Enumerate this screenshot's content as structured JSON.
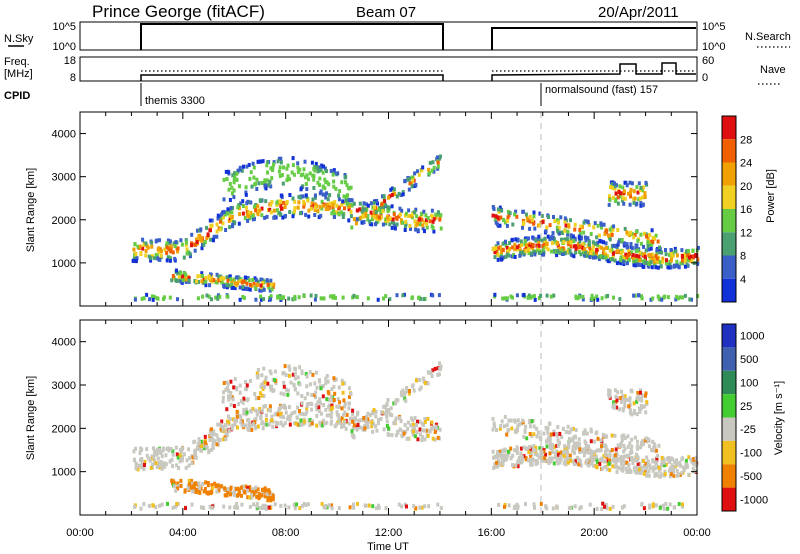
{
  "header": {
    "title": "Prince George (fitACF)",
    "beam": "Beam 07",
    "date": "20/Apr/2011"
  },
  "top_panels": {
    "nsky_label": "N.Sky",
    "nsky_ticks": [
      "10^5",
      "10^0"
    ],
    "nsearch_label": "N.Search",
    "nsearch_ticks": [
      "10^5",
      "10^0"
    ],
    "freq_label_1": "Freq.",
    "freq_label_2": "[MHz]",
    "freq_ticks": [
      "18",
      "8"
    ],
    "nave_label": "Nave",
    "nave_ticks": [
      "60",
      "0"
    ],
    "cpid_label": "CPID",
    "cpid_modes": [
      "themis 3300",
      "normalsound (fast) 157"
    ]
  },
  "chart_data": [
    {
      "type": "heatmap",
      "name": "power",
      "ylabel": "Slant Range [km]",
      "yticks": [
        "1000",
        "2000",
        "3000",
        "4000"
      ],
      "ylim": [
        0,
        4500
      ],
      "xlim": [
        0,
        24
      ],
      "colorbar_label": "Power [dB]",
      "colorbar_ticks": [
        "4",
        "8",
        "12",
        "16",
        "20",
        "24",
        "28"
      ],
      "colors": [
        "#1030d8",
        "#3a5fc8",
        "#4aa070",
        "#66cc44",
        "#f0d020",
        "#f0a000",
        "#f06000",
        "#e01010"
      ],
      "data_gap_ut": [
        14,
        16
      ]
    },
    {
      "type": "heatmap",
      "name": "velocity",
      "ylabel": "Slant Range [km]",
      "yticks": [
        "1000",
        "2000",
        "3000",
        "4000"
      ],
      "ylim": [
        0,
        4500
      ],
      "xlim": [
        0,
        24
      ],
      "colorbar_label": "Velocity [m s⁻¹]",
      "colorbar_ticks": [
        "1000",
        "500",
        "100",
        "25",
        "-25",
        "-100",
        "-500",
        "-1000"
      ],
      "colors": [
        "#2030c0",
        "#4060b0",
        "#2e8b57",
        "#44cc33",
        "#c8c8c0",
        "#f0c020",
        "#f08000",
        "#e01010"
      ],
      "data_gap_ut": [
        14,
        16
      ]
    }
  ],
  "xaxis": {
    "label": "Time UT",
    "ticks": [
      "00:00",
      "04:00",
      "08:00",
      "12:00",
      "16:00",
      "20:00",
      "00:00"
    ]
  }
}
